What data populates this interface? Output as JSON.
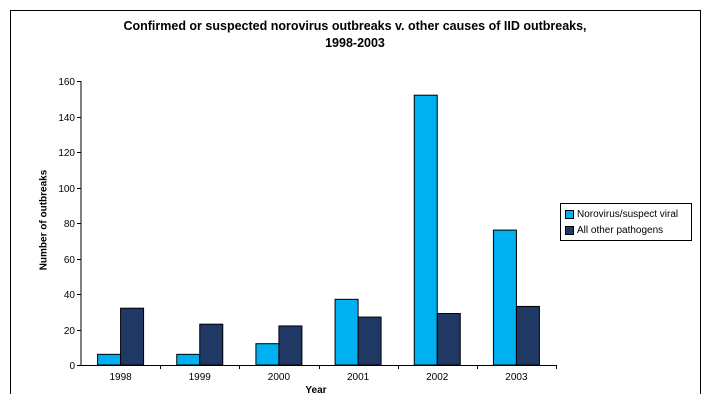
{
  "chart_data": {
    "type": "bar",
    "title": "Confirmed or suspected norovirus outbreaks v. other causes of IID outbreaks, 1998-2003",
    "xlabel": "Year",
    "ylabel": "Number of outbreaks",
    "categories": [
      "1998",
      "1999",
      "2000",
      "2001",
      "2002",
      "2003"
    ],
    "series": [
      {
        "name": "Norovirus/suspect viral",
        "color": "#00B0F0",
        "values": [
          6,
          6,
          12,
          37,
          152,
          76
        ]
      },
      {
        "name": "All other pathogens",
        "color": "#1F3864",
        "values": [
          32,
          23,
          22,
          27,
          29,
          33
        ]
      }
    ],
    "ylim": [
      0,
      160
    ],
    "yticks": [
      0,
      20,
      40,
      60,
      80,
      100,
      120,
      140,
      160
    ],
    "grid": false,
    "legend": "right"
  }
}
